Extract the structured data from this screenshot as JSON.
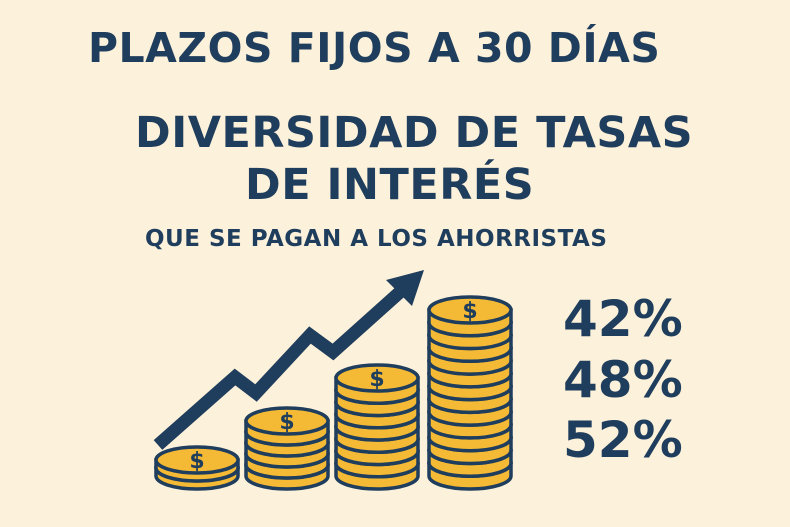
{
  "title": "PLAZOS FIJOS A 30 DÍAS",
  "heading_line1": "DIVERSIDAD DE TASAS",
  "heading_line2": "DE INTERÉS",
  "subheading": "QUE SE PAGAN A LOS AHORRISTAS",
  "rates": [
    "42%",
    "48%",
    "52%"
  ],
  "illustration": {
    "icon": "coin-stacks-with-rising-arrow",
    "coin_symbol": "$",
    "stacks_coin_counts": [
      2,
      5,
      8,
      13
    ],
    "colors": {
      "background": "#fcf1da",
      "text": "#1f3d5c",
      "coin": "#f4b935",
      "outline": "#1f3d5c"
    }
  }
}
